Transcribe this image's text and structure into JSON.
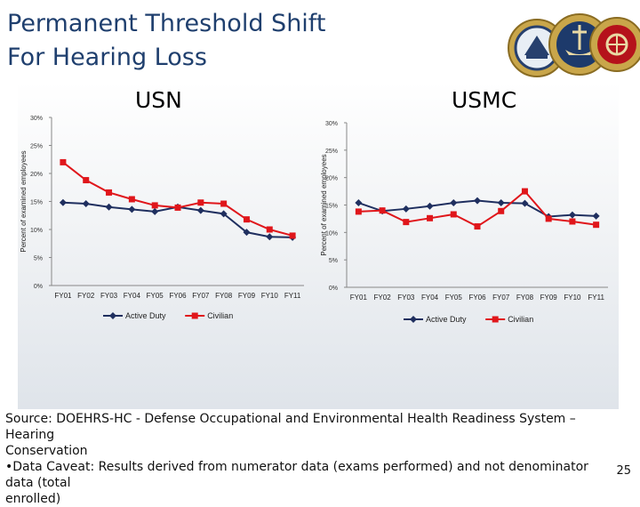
{
  "slide": {
    "title_line1": "Permanent Threshold Shift",
    "title_line2": "For Hearing Loss",
    "page_number": "25",
    "footer_line1": "Source: DOEHRS-HC - Defense Occupational and Environmental Health Readiness System – Hearing",
    "footer_line2": "Conservation",
    "footer_line3": "•Data Caveat:  Results derived from numerator data (exams performed) and not denominator data (total",
    "footer_line4": "enrolled)"
  },
  "colors": {
    "active_duty": "#1f2f5f",
    "civilian": "#e0161b",
    "title": "#1f3f6e"
  },
  "chart_data": [
    {
      "type": "line",
      "title": "USN",
      "ylabel": "Percent of examined employees",
      "x": [
        "FY01",
        "FY02",
        "FY03",
        "FY04",
        "FY05",
        "FY06",
        "FY07",
        "FY08",
        "FY09",
        "FY10",
        "FY11"
      ],
      "ylim": [
        0,
        30
      ],
      "yticks": [
        "0%",
        "5%",
        "10%",
        "15%",
        "20%",
        "25%",
        "30%"
      ],
      "grid": false,
      "legend": "bottom",
      "series": [
        {
          "name": "Active Duty",
          "values": [
            14.8,
            14.6,
            14.0,
            13.6,
            13.2,
            14.0,
            13.4,
            12.8,
            9.5,
            8.7,
            8.6
          ]
        },
        {
          "name": "Civilian",
          "values": [
            22.0,
            18.8,
            16.6,
            15.4,
            14.3,
            13.9,
            14.8,
            14.6,
            11.8,
            10.0,
            8.9
          ]
        }
      ]
    },
    {
      "type": "line",
      "title": "USMC",
      "ylabel": "Percent of examined employees",
      "x": [
        "FY01",
        "FY02",
        "FY03",
        "FY04",
        "FY05",
        "FY06",
        "FY07",
        "FY08",
        "FY09",
        "FY10",
        "FY11"
      ],
      "ylim": [
        0,
        30
      ],
      "yticks": [
        "0%",
        "5%",
        "10%",
        "15%",
        "20%",
        "25%",
        "30%"
      ],
      "grid": false,
      "legend": "bottom",
      "series": [
        {
          "name": "Active Duty",
          "values": [
            15.4,
            13.9,
            14.3,
            14.8,
            15.4,
            15.8,
            15.4,
            15.3,
            12.9,
            13.2,
            13.0
          ]
        },
        {
          "name": "Civilian",
          "values": [
            13.8,
            14.0,
            11.9,
            12.6,
            13.3,
            11.1,
            13.9,
            17.5,
            12.5,
            12.0,
            11.4
          ]
        }
      ]
    }
  ]
}
